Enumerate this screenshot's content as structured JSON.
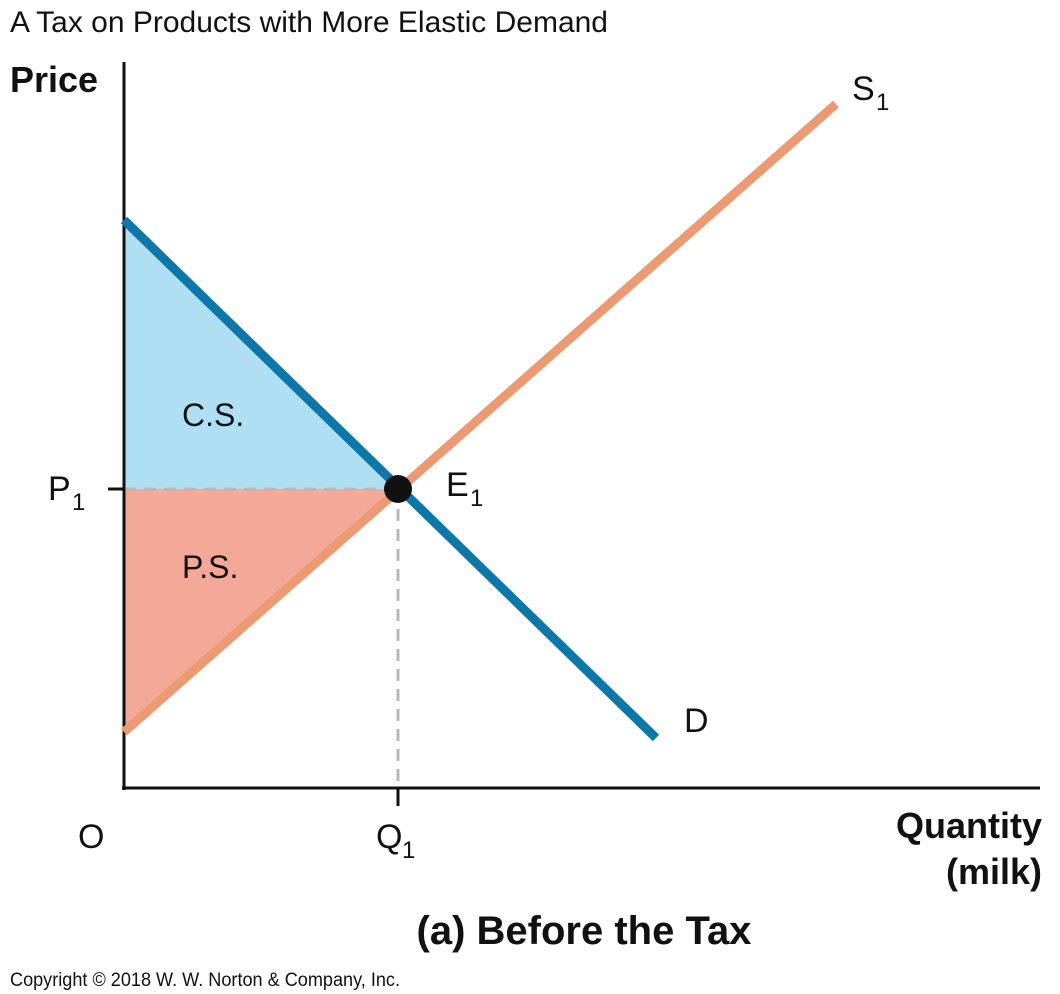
{
  "title": "A Tax on Products with More Elastic Demand",
  "caption": "(a) Before the Tax",
  "copyright": "Copyright © 2018 W. W. Norton & Company, Inc.",
  "axes": {
    "y_label": "Price",
    "x_label_line1": "Quantity",
    "x_label_line2": "(milk)",
    "origin_label": "O"
  },
  "labels": {
    "supply_main": "S",
    "supply_sub": "1",
    "demand": "D",
    "equilibrium_main": "E",
    "equilibrium_sub": "1",
    "price_main": "P",
    "price_sub": "1",
    "quantity_main": "Q",
    "quantity_sub": "1",
    "consumer_surplus": "C.S.",
    "producer_surplus": "P.S."
  },
  "colors": {
    "supply": "#ec9a72",
    "demand": "#0d77a9",
    "consumer_surplus": "#aedff2",
    "producer_surplus": "#f4a898",
    "guide": "#b8b8b8",
    "axis": "#111111",
    "point": "#111111"
  }
}
